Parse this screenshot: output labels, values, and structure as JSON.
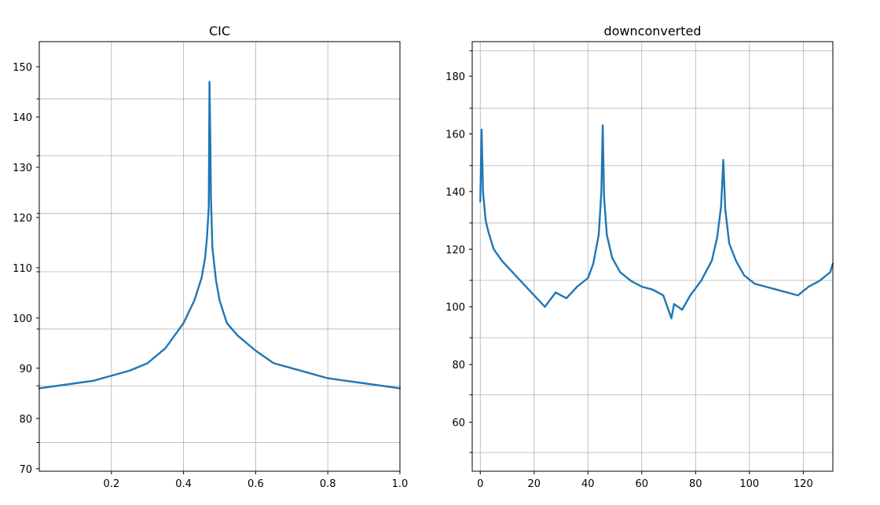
{
  "colors": {
    "series": "#1f77b4",
    "grid": "#b0b0b0",
    "background": "#ffffff"
  },
  "chart_data": [
    {
      "type": "line",
      "title": "CIC",
      "xlabel": "",
      "ylabel": "",
      "xlim": [
        0.0,
        1.0
      ],
      "ylim": [
        69.5,
        155
      ],
      "xticks": [
        0.2,
        0.4,
        0.6,
        0.8,
        1.0
      ],
      "xtick_labels": [
        "0.2",
        "0.4",
        "0.6",
        "0.8",
        "1.0"
      ],
      "yticks": [
        70,
        80,
        90,
        100,
        110,
        120,
        130,
        140,
        150
      ],
      "ytick_labels": [
        "70",
        "80",
        "90",
        "100",
        "110",
        "120",
        "130",
        "140",
        "150"
      ],
      "y_gridlines": [
        75.2,
        86.5,
        97.8,
        109.2,
        120.8,
        132.3,
        143.6
      ],
      "grid": true,
      "legend": "none",
      "series": [
        {
          "x": [
            0.0,
            0.05,
            0.1,
            0.15,
            0.2,
            0.25,
            0.3,
            0.35,
            0.4,
            0.43,
            0.45,
            0.46,
            0.465,
            0.47,
            0.472,
            0.474,
            0.476,
            0.48,
            0.49,
            0.5,
            0.52,
            0.55,
            0.6,
            0.65,
            0.7,
            0.75,
            0.8,
            0.85,
            0.9,
            0.95,
            1.0
          ],
          "y": [
            86.0,
            86.5,
            87.0,
            87.5,
            88.5,
            89.5,
            91.0,
            94.0,
            99.0,
            103.5,
            108.0,
            112.0,
            116.0,
            122.0,
            147.0,
            136.5,
            124.0,
            114.0,
            107.5,
            103.5,
            99.0,
            96.5,
            93.5,
            91.0,
            90.0,
            89.0,
            88.0,
            87.5,
            87.0,
            86.5,
            86.0
          ]
        }
      ]
    },
    {
      "type": "line",
      "title": "downconverted",
      "xlabel": "",
      "ylabel": "",
      "xlim": [
        -3,
        131
      ],
      "ylim": [
        43,
        192
      ],
      "xticks": [
        0,
        20,
        40,
        60,
        80,
        100,
        120
      ],
      "xtick_labels": [
        "0",
        "20",
        "40",
        "60",
        "80",
        "100",
        "120"
      ],
      "yticks": [
        60,
        80,
        100,
        120,
        140,
        160,
        180
      ],
      "ytick_labels": [
        "60",
        "80",
        "100",
        "120",
        "140",
        "160",
        "180"
      ],
      "y_gridlines": [
        49.5,
        69.5,
        89.3,
        109.2,
        129.1,
        149.0,
        168.9,
        188.8
      ],
      "grid": true,
      "legend": "none",
      "series": [
        {
          "x": [
            0,
            0.5,
            1,
            2,
            3,
            5,
            8,
            12,
            16,
            20,
            24,
            28,
            32,
            36,
            40,
            42,
            44,
            45,
            45.5,
            46,
            47,
            49,
            52,
            56,
            60,
            64,
            68,
            71,
            72,
            75,
            78,
            82,
            86,
            88,
            89.5,
            90.3,
            91,
            92.5,
            95,
            98,
            102,
            106,
            110,
            114,
            118,
            122,
            126,
            130,
            131
          ],
          "y": [
            136.5,
            161.5,
            140,
            130,
            126,
            120,
            116,
            112,
            108,
            104,
            100,
            105,
            103,
            107,
            110,
            115,
            125,
            140,
            163,
            138,
            125,
            117,
            112,
            109,
            107,
            106,
            104,
            96,
            101,
            99,
            104,
            109,
            116,
            124,
            135,
            151,
            134,
            122,
            116,
            111,
            108,
            107,
            106,
            105,
            104,
            107,
            109,
            112,
            115
          ]
        }
      ]
    }
  ]
}
